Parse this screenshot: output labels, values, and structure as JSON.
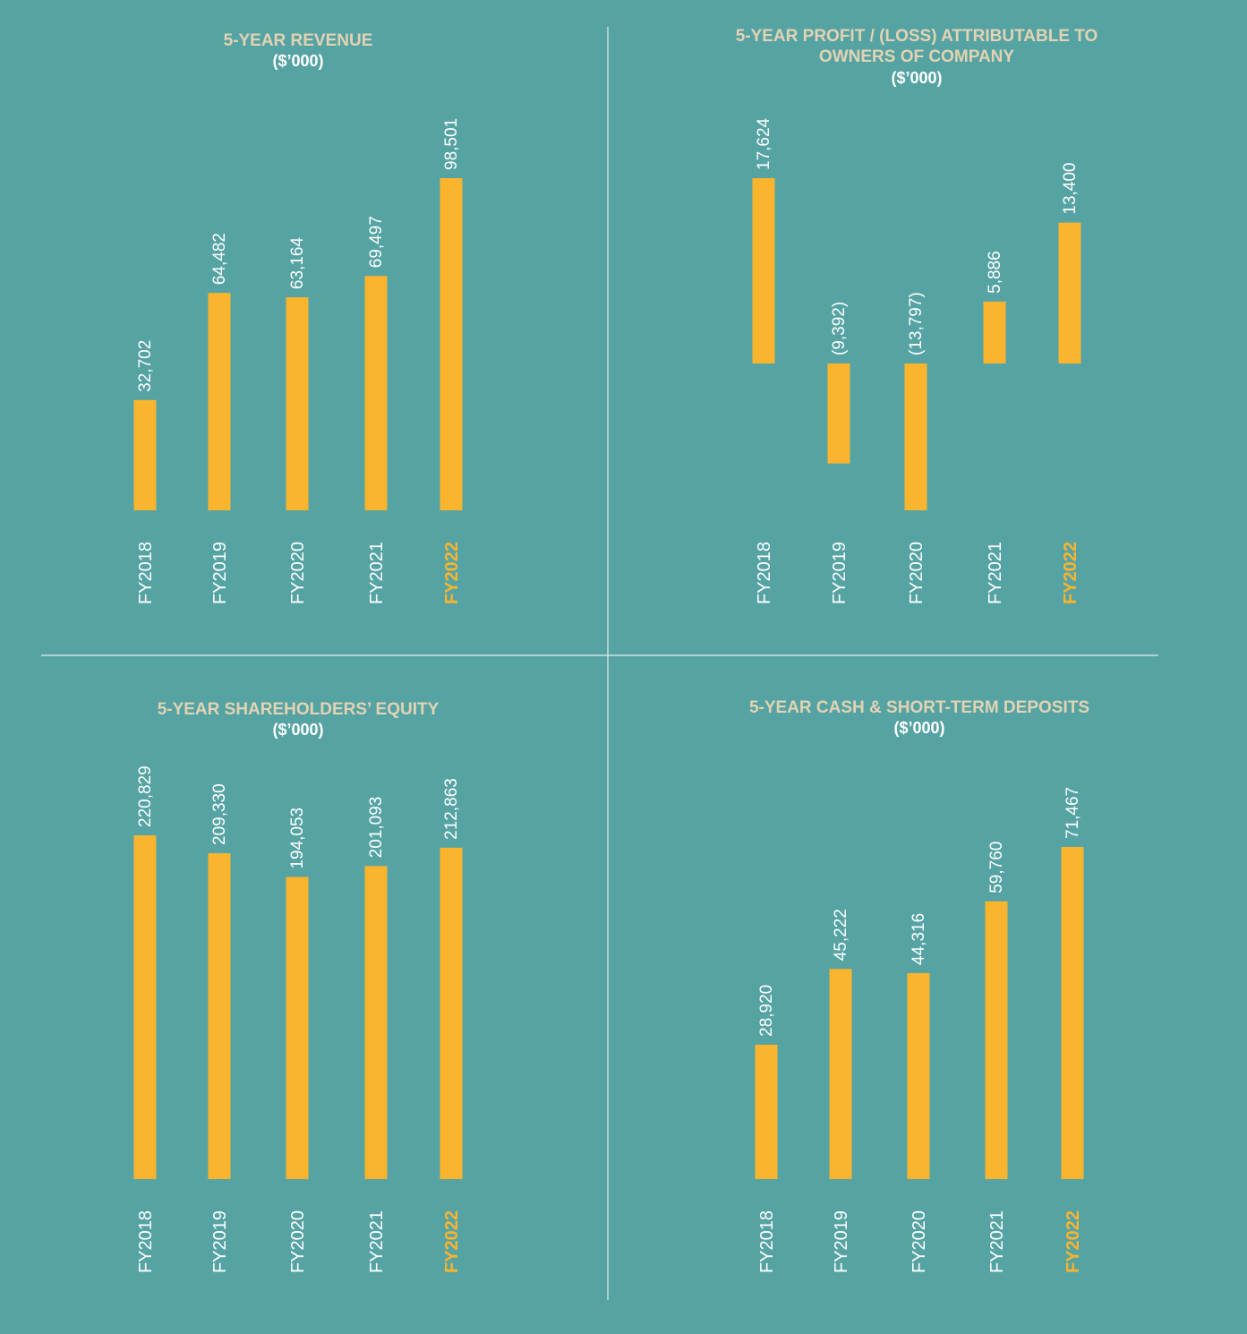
{
  "colors": {
    "background": "#56a3a4",
    "bar": "#fbb42d",
    "title": "#e3d3b3",
    "text": "#ffffff",
    "highlight": "#fbb42d",
    "divider": "#e6eeee"
  },
  "chart_data": [
    {
      "type": "bar",
      "title": "5-YEAR REVENUE",
      "subtitle": "($’000)",
      "categories": [
        "FY2018",
        "FY2019",
        "FY2020",
        "FY2021",
        "FY2022"
      ],
      "highlight_category": "FY2022",
      "values": [
        32702,
        64482,
        63164,
        69497,
        98501
      ],
      "value_labels": [
        "32,702",
        "64,482",
        "63,164",
        "69,497",
        "98,501"
      ],
      "grid": false
    },
    {
      "type": "bar",
      "title": "5-YEAR PROFIT / (LOSS) ATTRIBUTABLE TO OWNERS OF COMPANY",
      "subtitle": "($’000)",
      "categories": [
        "FY2018",
        "FY2019",
        "FY2020",
        "FY2021",
        "FY2022"
      ],
      "highlight_category": "FY2022",
      "values": [
        17624,
        -9392,
        -13797,
        5886,
        13400
      ],
      "value_labels": [
        "17,624",
        "(9,392)",
        "(13,797)",
        "5,886",
        "13,400"
      ],
      "grid": false
    },
    {
      "type": "bar",
      "title": "5-YEAR SHAREHOLDERS’ EQUITY",
      "subtitle": "($’000)",
      "categories": [
        "FY2018",
        "FY2019",
        "FY2020",
        "FY2021",
        "FY2022"
      ],
      "highlight_category": "FY2022",
      "values": [
        220829,
        209330,
        194053,
        201093,
        212863
      ],
      "value_labels": [
        "220,829",
        "209,330",
        "194,053",
        "201,093",
        "212,863"
      ],
      "grid": false
    },
    {
      "type": "bar",
      "title": "5-YEAR CASH & SHORT-TERM DEPOSITS",
      "subtitle": "($’000)",
      "categories": [
        "FY2018",
        "FY2019",
        "FY2020",
        "FY2021",
        "FY2022"
      ],
      "highlight_category": "FY2022",
      "values": [
        28920,
        45222,
        44316,
        59760,
        71467
      ],
      "value_labels": [
        "28,920",
        "45,222",
        "44,316",
        "59,760",
        "71,467"
      ],
      "grid": false
    }
  ]
}
